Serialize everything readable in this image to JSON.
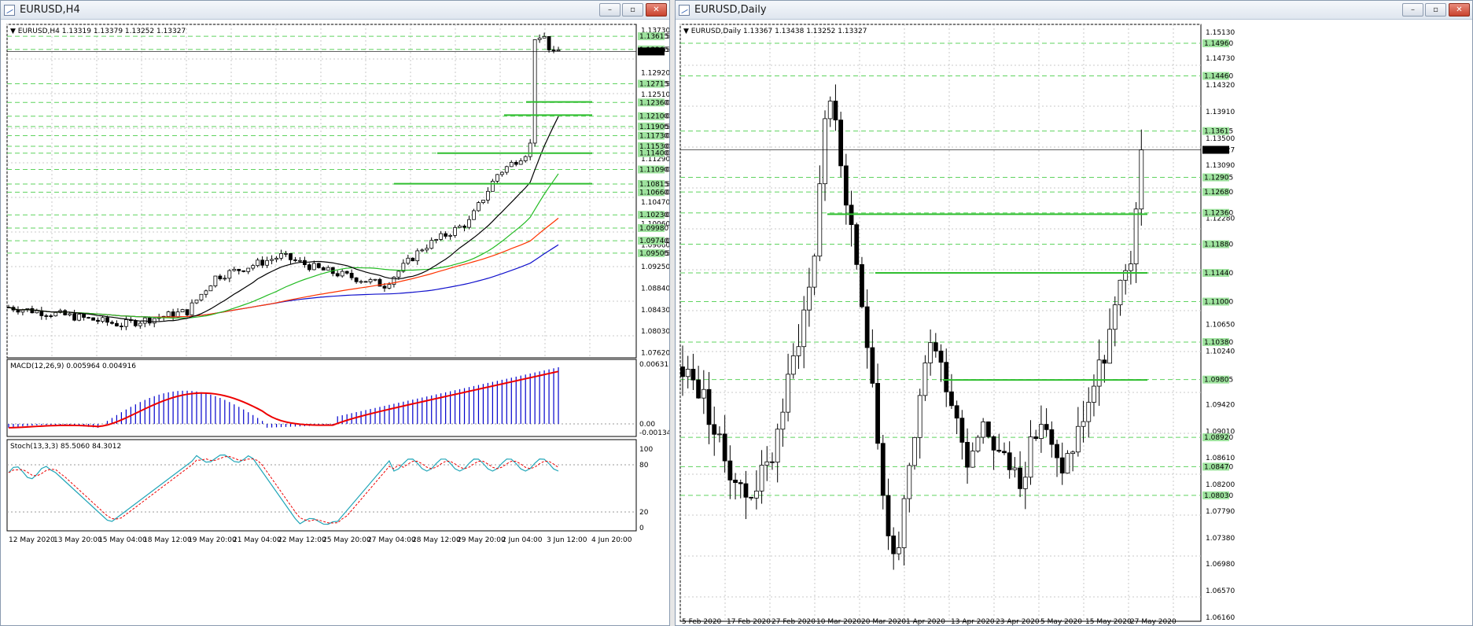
{
  "windows": [
    {
      "id": "h4",
      "title": "EURUSD,H4",
      "controls": {
        "minimize": "–",
        "maximize": "▫",
        "close": "✕"
      },
      "header_text": "EURUSD,H4  1.13319 1.13379 1.13252 1.13327",
      "price_axis_labels": [
        "1.13730",
        "1.13615",
        "1.13365",
        "1.12920",
        "1.12715",
        "1.12510",
        "1.12360",
        "1.12100",
        "1.11905",
        "1.11730",
        "1.11530",
        "1.11400",
        "1.11290",
        "1.11090",
        "1.10815",
        "1.10660",
        "1.10470",
        "1.10230",
        "1.10060",
        "1.09740",
        "1.09660",
        "1.09505",
        "1.09250",
        "1.08840",
        "1.08430",
        "1.08030",
        "1.07620"
      ],
      "green_level_labels": [
        "1.13615",
        "1.13365",
        "1.12715",
        "1.12360",
        "1.12100",
        "1.11905",
        "1.11730",
        "1.11530",
        "1.11400",
        "1.11090",
        "1.10815",
        "1.10660",
        "1.10230",
        "1.09980",
        "1.09740",
        "1.09505"
      ],
      "macd": {
        "label": "MACD(12,26,9) 0.005964 0.004916",
        "ticks": [
          "0.006312",
          "0.00",
          "-0.001341"
        ]
      },
      "stoch": {
        "label": "Stoch(13,3,3) 85.5060 84.3012",
        "ticks": [
          "100",
          "80",
          "20",
          "0"
        ]
      },
      "time_labels": [
        "12 May 2020",
        "13 May 20:00",
        "15 May 04:00",
        "18 May 12:00",
        "19 May 20:00",
        "21 May 04:00",
        "22 May 12:00",
        "25 May 20:00",
        "27 May 04:00",
        "28 May 12:00",
        "29 May 20:00",
        "2 Jun 04:00",
        "3 Jun 12:00",
        "4 Jun 20:00"
      ]
    },
    {
      "id": "daily",
      "title": "EURUSD,Daily",
      "controls": {
        "minimize": "–",
        "maximize": "▫",
        "close": "✕"
      },
      "header_text": "EURUSD,Daily  1.13367 1.13438 1.13252 1.13327",
      "price_axis_labels": [
        "1.15130",
        "1.14960",
        "1.14730",
        "1.14460",
        "1.14320",
        "1.13910",
        "1.13615",
        "1.13500",
        "1.13327",
        "1.13090",
        "1.12905",
        "1.12680",
        "1.12360",
        "1.12280",
        "1.11880",
        "1.11440",
        "1.11000",
        "1.10650",
        "1.10380",
        "1.10240",
        "1.09805",
        "1.09420",
        "1.09010",
        "1.08920",
        "1.08610",
        "1.08470",
        "1.08200",
        "1.08030",
        "1.07790",
        "1.07380",
        "1.06980",
        "1.06570",
        "1.06160"
      ],
      "time_labels": [
        "5 Feb 2020",
        "17 Feb 2020",
        "27 Feb 2020",
        "10 Mar 2020",
        "20 Mar 2020",
        "1 Apr 2020",
        "13 Apr 2020",
        "23 Apr 2020",
        "5 May 2020",
        "15 May 2020",
        "27 May 2020"
      ]
    }
  ],
  "colors": {
    "level_green": "#2fbe2f",
    "dash_green": "#5fd35f",
    "label_bg": "#9ee39e",
    "ma_black": "#000000",
    "ma_green": "#22bb22",
    "ma_red": "#ff3300",
    "ma_blue": "#1010cc",
    "macd_bar": "#0000cc",
    "macd_signal": "#ee0000",
    "stoch_main": "#21a6b8",
    "stoch_signal": "#ee0000"
  }
}
